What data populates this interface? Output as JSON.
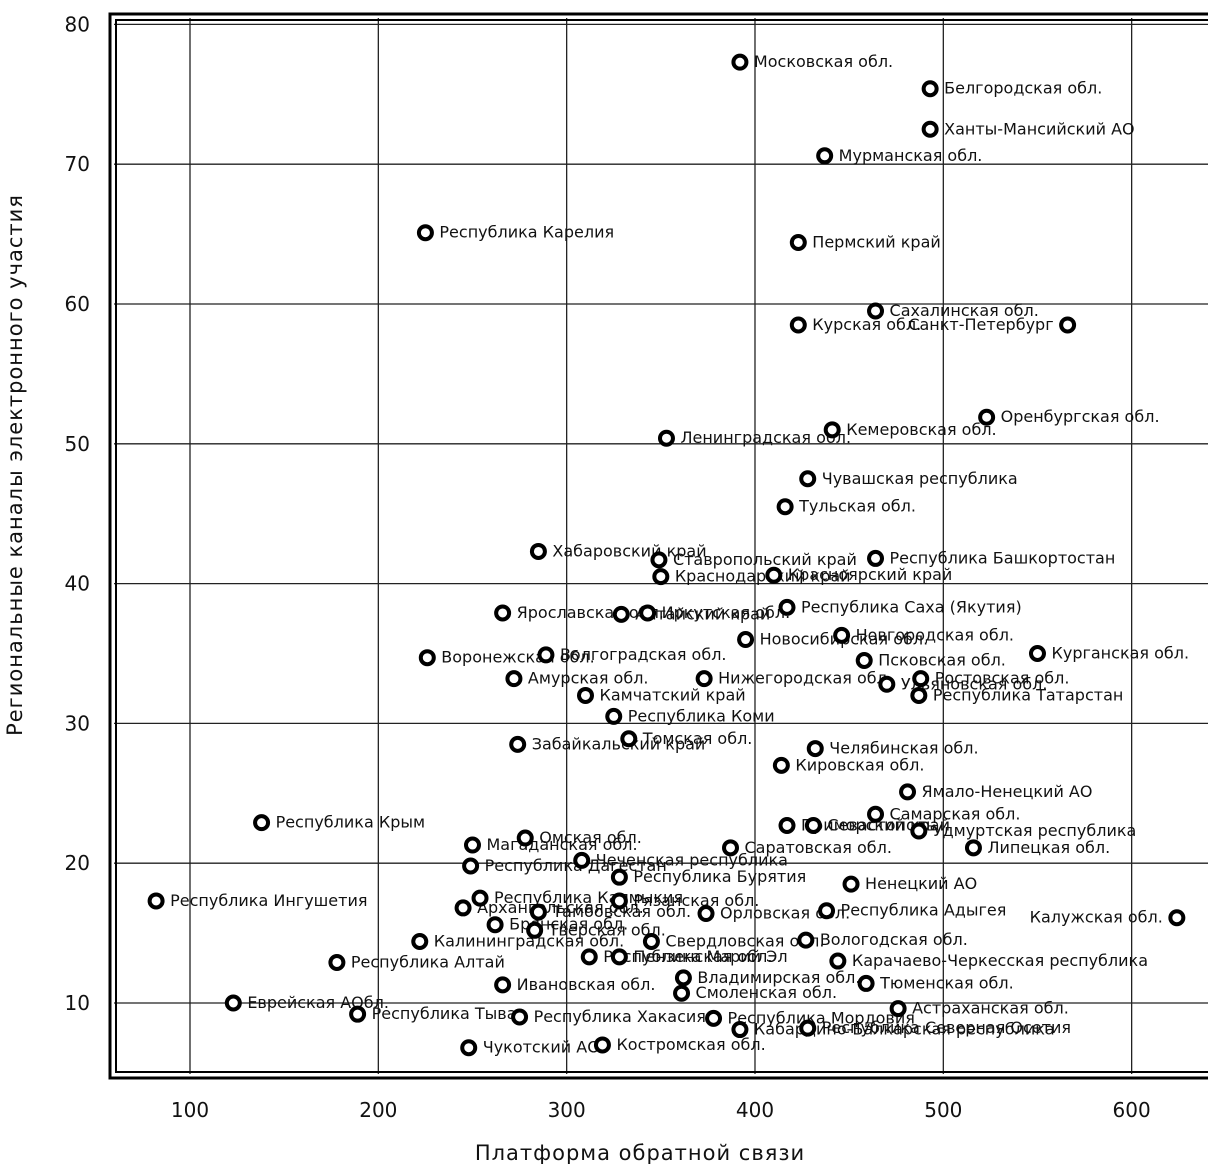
{
  "chart_data": {
    "type": "scatter",
    "title": "",
    "xlabel": "Платформа обратной связи",
    "ylabel": "Региональные каналы электронного участия",
    "xlim": [
      60,
      640
    ],
    "ylim": [
      5,
      81
    ],
    "xticks": [
      100,
      200,
      300,
      400,
      500,
      600
    ],
    "yticks": [
      10,
      20,
      30,
      40,
      50,
      60,
      70,
      80
    ],
    "grid": true,
    "points": [
      {
        "label": "Московская обл.",
        "x": 392,
        "y": 77.3
      },
      {
        "label": "Белгородская обл.",
        "x": 493,
        "y": 75.4
      },
      {
        "label": "Ханты-Мансийский АО",
        "x": 493,
        "y": 72.5
      },
      {
        "label": "Мурманская обл.",
        "x": 437,
        "y": 70.6
      },
      {
        "label": "Республика Карелия",
        "x": 225,
        "y": 65.1
      },
      {
        "label": "Пермский край",
        "x": 423,
        "y": 64.4
      },
      {
        "label": "Сахалинская обл.",
        "x": 464,
        "y": 59.5
      },
      {
        "label": "Курская обл.",
        "x": 423,
        "y": 58.5
      },
      {
        "label": "Санкт-Петербург",
        "x": 566,
        "y": 58.5
      },
      {
        "label": "Оренбургская обл.",
        "x": 523,
        "y": 51.9
      },
      {
        "label": "Кемеровская обл.",
        "x": 441,
        "y": 51.0
      },
      {
        "label": "Ленинградская обл.",
        "x": 353,
        "y": 50.4
      },
      {
        "label": "Чувашская республика",
        "x": 428,
        "y": 47.5
      },
      {
        "label": "Тульская обл.",
        "x": 416,
        "y": 45.5
      },
      {
        "label": "Хабаровский край",
        "x": 285,
        "y": 42.3
      },
      {
        "label": "Ставропольский край",
        "x": 349,
        "y": 41.7
      },
      {
        "label": "Республика Башкортостан",
        "x": 464,
        "y": 41.8
      },
      {
        "label": "Краснодарский край",
        "x": 350,
        "y": 40.5
      },
      {
        "label": "Красноярский край",
        "x": 410,
        "y": 40.6
      },
      {
        "label": "Ярославская обл.",
        "x": 266,
        "y": 37.9
      },
      {
        "label": "Алтайский край",
        "x": 329,
        "y": 37.8
      },
      {
        "label": "Иркутская обл.",
        "x": 343,
        "y": 37.9
      },
      {
        "label": "Республика Саха (Якутия)",
        "x": 417,
        "y": 38.3
      },
      {
        "label": "Волгоградская обл.",
        "x": 289,
        "y": 34.9
      },
      {
        "label": "Новосибирская обл.",
        "x": 395,
        "y": 36.0
      },
      {
        "label": "Новгородская обл.",
        "x": 446,
        "y": 36.3
      },
      {
        "label": "Воронежская обл.",
        "x": 226,
        "y": 34.7
      },
      {
        "label": "Псковская обл.",
        "x": 458,
        "y": 34.5
      },
      {
        "label": "Курганская обл.",
        "x": 550,
        "y": 35.0
      },
      {
        "label": "Амурская обл.",
        "x": 272,
        "y": 33.2
      },
      {
        "label": "Нижегородская обл.",
        "x": 373,
        "y": 33.2
      },
      {
        "label": "Ростовская обл.",
        "x": 488,
        "y": 33.2
      },
      {
        "label": "Ульяновская обл.",
        "x": 470,
        "y": 32.8
      },
      {
        "label": "Камчатский край",
        "x": 310,
        "y": 32.0
      },
      {
        "label": "Республика Татарстан",
        "x": 487,
        "y": 32.0
      },
      {
        "label": "Республика Коми",
        "x": 325,
        "y": 30.5
      },
      {
        "label": "Томская обл.",
        "x": 333,
        "y": 28.9
      },
      {
        "label": "Забайкальский край",
        "x": 274,
        "y": 28.5
      },
      {
        "label": "Челябинская обл.",
        "x": 432,
        "y": 28.2
      },
      {
        "label": "Кировская обл.",
        "x": 414,
        "y": 27.0
      },
      {
        "label": "Ямало-Ненецкий АО",
        "x": 481,
        "y": 25.1
      },
      {
        "label": "Республика Крым",
        "x": 138,
        "y": 22.9
      },
      {
        "label": "Самарская обл.",
        "x": 464,
        "y": 23.5
      },
      {
        "label": "Приморский край",
        "x": 417,
        "y": 22.7
      },
      {
        "label": "Севастополь",
        "x": 431,
        "y": 22.7
      },
      {
        "label": "Удмуртская республика",
        "x": 487,
        "y": 22.3
      },
      {
        "label": "Омская обл.",
        "x": 278,
        "y": 21.8
      },
      {
        "label": "Магаданская обл.",
        "x": 250,
        "y": 21.3
      },
      {
        "label": "Саратовская обл.",
        "x": 387,
        "y": 21.1
      },
      {
        "label": "Липецкая обл.",
        "x": 516,
        "y": 21.1
      },
      {
        "label": "Республика Дагестан",
        "x": 249,
        "y": 19.8
      },
      {
        "label": "Чеченская республика",
        "x": 308,
        "y": 20.2
      },
      {
        "label": "Республика Бурятия",
        "x": 328,
        "y": 19.0
      },
      {
        "label": "Ненецкий АО",
        "x": 451,
        "y": 18.5
      },
      {
        "label": "Республика Ингушетия",
        "x": 82,
        "y": 17.3
      },
      {
        "label": "Республика Калмыкия",
        "x": 254,
        "y": 17.5
      },
      {
        "label": "Рязанская обл.",
        "x": 328,
        "y": 17.3
      },
      {
        "label": "Архангельская обл.",
        "x": 245,
        "y": 16.8
      },
      {
        "label": "Тамбовская обл.",
        "x": 285,
        "y": 16.5
      },
      {
        "label": "Орловская обл.",
        "x": 374,
        "y": 16.4
      },
      {
        "label": "Республика Адыгея",
        "x": 438,
        "y": 16.6
      },
      {
        "label": "Калужская обл.",
        "x": 624,
        "y": 16.1
      },
      {
        "label": "Брянская обл.",
        "x": 262,
        "y": 15.6
      },
      {
        "label": "Тверская обл.",
        "x": 283,
        "y": 15.2
      },
      {
        "label": "Калининградская обл.",
        "x": 222,
        "y": 14.4
      },
      {
        "label": "Свердловская обл.",
        "x": 345,
        "y": 14.4
      },
      {
        "label": "Вологодская обл.",
        "x": 427,
        "y": 14.5
      },
      {
        "label": "Республика Алтай",
        "x": 178,
        "y": 12.9
      },
      {
        "label": "Республика Марий Эл",
        "x": 312,
        "y": 13.3
      },
      {
        "label": "Пензенская обл.",
        "x": 328,
        "y": 13.3
      },
      {
        "label": "Владимирская обл.",
        "x": 362,
        "y": 11.8
      },
      {
        "label": "Карачаево-Черкесская республика",
        "x": 444,
        "y": 13.0
      },
      {
        "label": "Ивановская обл.",
        "x": 266,
        "y": 11.3
      },
      {
        "label": "Тюменская обл.",
        "x": 459,
        "y": 11.4
      },
      {
        "label": "Смоленская обл.",
        "x": 361,
        "y": 10.7
      },
      {
        "label": "Еврейская АОбл.",
        "x": 123,
        "y": 10.0
      },
      {
        "label": "Астраханская обл.",
        "x": 476,
        "y": 9.6
      },
      {
        "label": "Республика Тыва",
        "x": 189,
        "y": 9.2
      },
      {
        "label": "Республика Хакасия",
        "x": 275,
        "y": 9.0
      },
      {
        "label": "Республика Мордовия",
        "x": 378,
        "y": 8.9
      },
      {
        "label": "Кабардино-Балкарская республика",
        "x": 392,
        "y": 8.1
      },
      {
        "label": "Республика Северная Осетия",
        "x": 428,
        "y": 8.2
      },
      {
        "label": "Чукотский АО",
        "x": 248,
        "y": 6.8
      },
      {
        "label": "Костромская обл.",
        "x": 319,
        "y": 7.0
      }
    ]
  }
}
